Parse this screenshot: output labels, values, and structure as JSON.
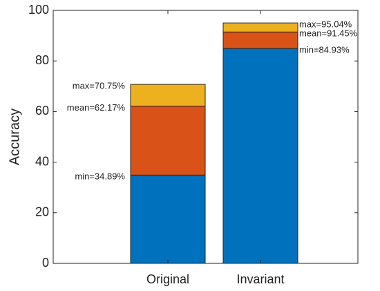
{
  "chart_data": {
    "type": "bar",
    "overlay": true,
    "y_label": "Accuracy",
    "categories": [
      "Original",
      "Invariant"
    ],
    "series": [
      {
        "color": "#EDB120",
        "values": [
          70.75,
          95.04
        ],
        "value_labels": [
          "max=70.75%",
          "max=95.04%"
        ]
      },
      {
        "color": "#D95319",
        "values": [
          62.17,
          91.45
        ],
        "value_labels": [
          "mean=62.17%",
          "mean=91.45%"
        ]
      },
      {
        "color": "#0072BD",
        "values": [
          34.89,
          84.93
        ],
        "value_labels": [
          "min=34.89%",
          "min=84.93%"
        ]
      }
    ],
    "ylim": [
      0,
      100
    ],
    "yticks": [
      0,
      20,
      40,
      60,
      80,
      100
    ]
  }
}
